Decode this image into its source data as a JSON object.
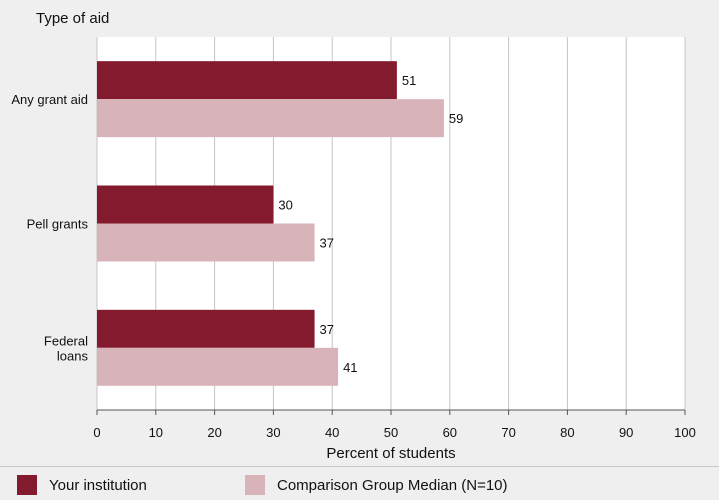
{
  "chart_data": {
    "type": "bar",
    "orientation": "horizontal",
    "ylabel": "Type of aid",
    "xlabel": "Percent of students",
    "categories": [
      [
        "Any grant aid"
      ],
      [
        "Pell grants"
      ],
      [
        "Federal",
        "loans"
      ]
    ],
    "series": [
      {
        "name": "Your institution",
        "values": [
          51,
          30,
          37
        ],
        "color": "#841a2d"
      },
      {
        "name": "Comparison Group Median (N=10)",
        "values": [
          59,
          37,
          41
        ],
        "color": "#d9b3ba"
      }
    ],
    "xlim": [
      0,
      100
    ],
    "xticks": [
      0,
      10,
      20,
      30,
      40,
      50,
      60,
      70,
      80,
      90,
      100
    ],
    "grid": true,
    "legend_position": "bottom"
  }
}
